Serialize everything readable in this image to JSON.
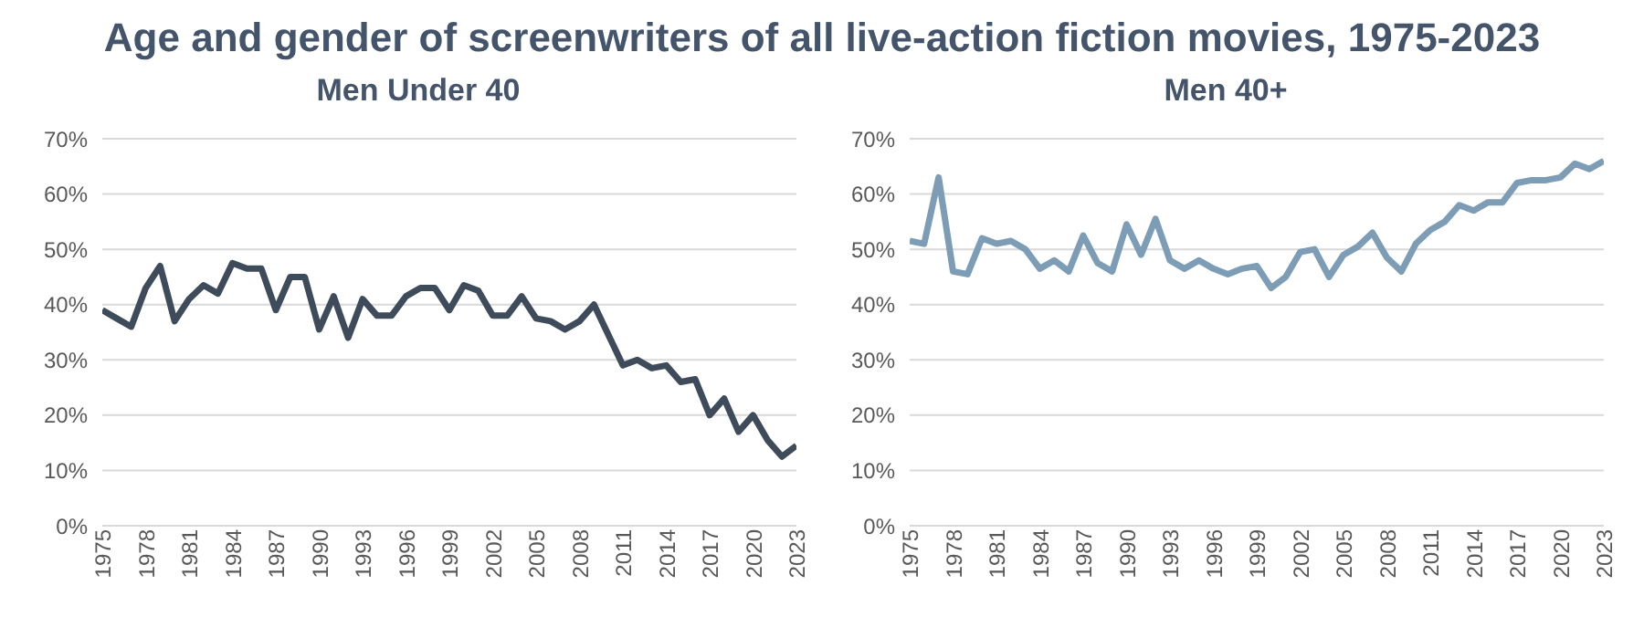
{
  "chart_data": [
    {
      "type": "line",
      "title": "Age and gender of screenwriters of all live-action fiction movies, 1975-2023",
      "x": [
        1975,
        1976,
        1977,
        1978,
        1979,
        1980,
        1981,
        1982,
        1983,
        1984,
        1985,
        1986,
        1987,
        1988,
        1989,
        1990,
        1991,
        1992,
        1993,
        1994,
        1995,
        1996,
        1997,
        1998,
        1999,
        2000,
        2001,
        2002,
        2003,
        2004,
        2005,
        2006,
        2007,
        2008,
        2009,
        2010,
        2011,
        2012,
        2013,
        2014,
        2015,
        2016,
        2017,
        2018,
        2019,
        2020,
        2021,
        2022,
        2023
      ],
      "series": [
        {
          "name": "Men Under 40",
          "color": "#3d4b5a",
          "values": [
            39,
            37.5,
            36,
            43,
            47,
            37,
            41,
            43.5,
            42,
            47.5,
            46.5,
            46.5,
            39,
            45,
            45,
            35.5,
            41.5,
            34,
            41,
            38,
            38,
            41.5,
            43,
            43,
            39,
            43.5,
            42.5,
            38,
            38,
            41.5,
            37.5,
            37,
            35.5,
            37,
            40,
            34.5,
            29,
            30,
            28.5,
            29,
            26,
            26.5,
            20,
            23,
            17,
            20,
            15.5,
            12.5,
            14.5
          ]
        }
      ],
      "xlim": [
        1975,
        2023
      ],
      "xticks": [
        1975,
        1978,
        1981,
        1984,
        1987,
        1990,
        1993,
        1996,
        1999,
        2002,
        2005,
        2008,
        2011,
        2014,
        2017,
        2020,
        2023
      ],
      "ylim": [
        0,
        70
      ],
      "yticks": [
        {
          "value": 0,
          "label": "0%"
        },
        {
          "value": 10,
          "label": "10%"
        },
        {
          "value": 20,
          "label": "20%"
        },
        {
          "value": 30,
          "label": "30%"
        },
        {
          "value": 40,
          "label": "40%"
        },
        {
          "value": 50,
          "label": "50%"
        },
        {
          "value": 60,
          "label": "60%"
        },
        {
          "value": 70,
          "label": "70%"
        }
      ],
      "grid": "y",
      "marker": "none",
      "line_style": "solid"
    },
    {
      "type": "line",
      "x": [
        1975,
        1976,
        1977,
        1978,
        1979,
        1980,
        1981,
        1982,
        1983,
        1984,
        1985,
        1986,
        1987,
        1988,
        1989,
        1990,
        1991,
        1992,
        1993,
        1994,
        1995,
        1996,
        1997,
        1998,
        1999,
        2000,
        2001,
        2002,
        2003,
        2004,
        2005,
        2006,
        2007,
        2008,
        2009,
        2010,
        2011,
        2012,
        2013,
        2014,
        2015,
        2016,
        2017,
        2018,
        2019,
        2020,
        2021,
        2022,
        2023
      ],
      "series": [
        {
          "name": "Men 40+",
          "color": "#7d9cb5",
          "values": [
            51.5,
            51,
            63,
            46,
            45.5,
            52,
            51,
            51.5,
            50,
            46.5,
            48,
            46,
            52.5,
            47.5,
            46,
            54.5,
            49,
            55.5,
            48,
            46.5,
            48,
            46.5,
            45.5,
            46.5,
            47,
            43,
            45,
            49.5,
            50,
            45,
            49,
            50.5,
            53,
            48.5,
            46,
            51,
            53.5,
            55,
            58,
            57,
            58.5,
            58.5,
            62,
            62.5,
            62.5,
            63,
            65.5,
            64.5,
            66
          ]
        }
      ],
      "xlim": [
        1975,
        2023
      ],
      "xticks": [
        1975,
        1978,
        1981,
        1984,
        1987,
        1990,
        1993,
        1996,
        1999,
        2002,
        2005,
        2008,
        2011,
        2014,
        2017,
        2020,
        2023
      ],
      "ylim": [
        0,
        70
      ],
      "yticks": [
        {
          "value": 0,
          "label": "0%"
        },
        {
          "value": 10,
          "label": "10%"
        },
        {
          "value": 20,
          "label": "20%"
        },
        {
          "value": 30,
          "label": "30%"
        },
        {
          "value": 40,
          "label": "40%"
        },
        {
          "value": 50,
          "label": "50%"
        },
        {
          "value": 60,
          "label": "60%"
        },
        {
          "value": 70,
          "label": "70%"
        }
      ],
      "grid": "y",
      "marker": "none",
      "line_style": "solid"
    }
  ]
}
